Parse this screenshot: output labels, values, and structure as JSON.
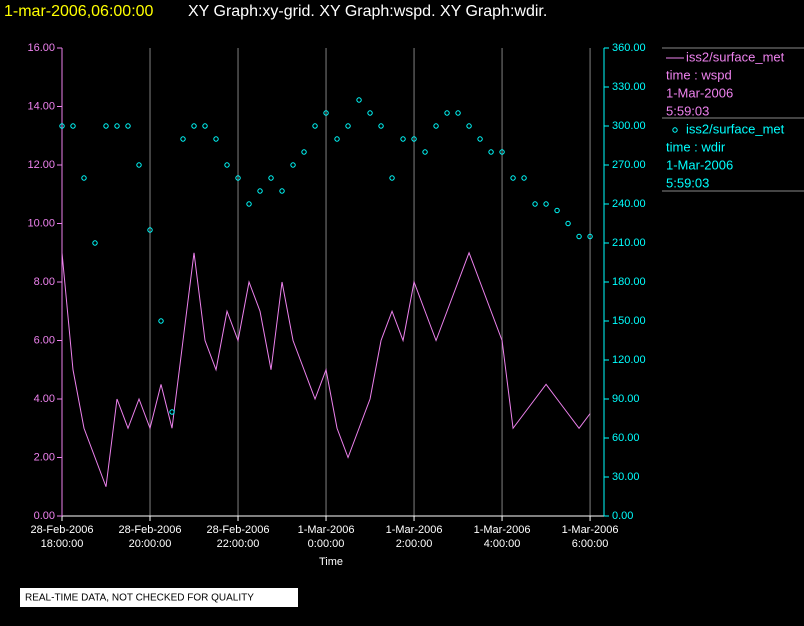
{
  "header": {
    "timestamp": "1-mar-2006,06:00:00",
    "graphs": "XY Graph:xy-grid.  XY Graph:wspd.  XY Graph:wdir."
  },
  "footer": "REAL-TIME DATA, NOT CHECKED FOR QUALITY",
  "chart_data": {
    "type": "line",
    "xlabel": "Time",
    "x": [
      "2006-02-28T18:00",
      "2006-02-28T18:15",
      "2006-02-28T18:30",
      "2006-02-28T18:45",
      "2006-02-28T19:00",
      "2006-02-28T19:15",
      "2006-02-28T19:30",
      "2006-02-28T19:45",
      "2006-02-28T20:00",
      "2006-02-28T20:15",
      "2006-02-28T20:30",
      "2006-02-28T20:45",
      "2006-02-28T21:00",
      "2006-02-28T21:15",
      "2006-02-28T21:30",
      "2006-02-28T21:45",
      "2006-02-28T22:00",
      "2006-02-28T22:15",
      "2006-02-28T22:30",
      "2006-02-28T22:45",
      "2006-02-28T23:00",
      "2006-02-28T23:15",
      "2006-02-28T23:30",
      "2006-02-28T23:45",
      "2006-03-01T00:00",
      "2006-03-01T00:15",
      "2006-03-01T00:30",
      "2006-03-01T00:45",
      "2006-03-01T01:00",
      "2006-03-01T01:15",
      "2006-03-01T01:30",
      "2006-03-01T01:45",
      "2006-03-01T02:00",
      "2006-03-01T02:15",
      "2006-03-01T02:30",
      "2006-03-01T02:45",
      "2006-03-01T03:00",
      "2006-03-01T03:15",
      "2006-03-01T03:30",
      "2006-03-01T03:45",
      "2006-03-01T04:00",
      "2006-03-01T04:15",
      "2006-03-01T04:30",
      "2006-03-01T04:45",
      "2006-03-01T05:00",
      "2006-03-01T05:15",
      "2006-03-01T05:30",
      "2006-03-01T05:45",
      "2006-03-01T06:00"
    ],
    "xlim": [
      "2006-02-28T18:00",
      "2006-03-01T06:19"
    ],
    "xticks": [
      {
        "value": "2006-02-28T18:00",
        "label": "28-Feb-2006\n18:00:00"
      },
      {
        "value": "2006-02-28T20:00",
        "label": "28-Feb-2006\n20:00:00"
      },
      {
        "value": "2006-02-28T22:00",
        "label": "28-Feb-2006\n22:00:00"
      },
      {
        "value": "2006-03-01T00:00",
        "label": "1-Mar-2006\n0:00:00"
      },
      {
        "value": "2006-03-01T02:00",
        "label": "1-Mar-2006\n2:00:00"
      },
      {
        "value": "2006-03-01T04:00",
        "label": "1-Mar-2006\n4:00:00"
      },
      {
        "value": "2006-03-01T06:00",
        "label": "1-Mar-2006\n6:00:00"
      }
    ],
    "ylim": [
      0,
      16
    ],
    "yticks": [
      {
        "value": 0,
        "label": "0.00"
      },
      {
        "value": 2,
        "label": "2.00"
      },
      {
        "value": 4,
        "label": "4.00"
      },
      {
        "value": 6,
        "label": "6.00"
      },
      {
        "value": 8,
        "label": "8.00"
      },
      {
        "value": 10,
        "label": "10.00"
      },
      {
        "value": 12,
        "label": "12.00"
      },
      {
        "value": 14,
        "label": "14.00"
      },
      {
        "value": 16,
        "label": "16.00"
      }
    ],
    "y2lim": [
      0,
      360
    ],
    "y2ticks": [
      {
        "value": 0,
        "label": "0.00"
      },
      {
        "value": 30,
        "label": "30.00"
      },
      {
        "value": 60,
        "label": "60.00"
      },
      {
        "value": 90,
        "label": "90.00"
      },
      {
        "value": 120,
        "label": "120.00"
      },
      {
        "value": 150,
        "label": "150.00"
      },
      {
        "value": 180,
        "label": "180.00"
      },
      {
        "value": 210,
        "label": "210.00"
      },
      {
        "value": 240,
        "label": "240.00"
      },
      {
        "value": 270,
        "label": "270.00"
      },
      {
        "value": 300,
        "label": "300.00"
      },
      {
        "value": 330,
        "label": "330.00"
      },
      {
        "value": 360,
        "label": "360.00"
      }
    ],
    "grid": true,
    "series": [
      {
        "name": "iss2/surface_met",
        "legend_lines": [
          "time : wspd",
          "1-Mar-2006",
          "5:59:03"
        ],
        "color": "#ee82ee",
        "mark": "line",
        "values": [
          9,
          5,
          3,
          2,
          1,
          4,
          3,
          4,
          3,
          4.5,
          3,
          6,
          9,
          6,
          5,
          7,
          6,
          8,
          7,
          5,
          8,
          6,
          5,
          4,
          5,
          3,
          2,
          3,
          4,
          6,
          7,
          6,
          8,
          7,
          6,
          7,
          8,
          9,
          8,
          7,
          6,
          3,
          3.5,
          4,
          4.5,
          4,
          3.5,
          3,
          3.5
        ]
      },
      {
        "name": "iss2/surface_met",
        "legend_lines": [
          "time : wdir",
          "1-Mar-2006",
          "5:59:03"
        ],
        "color": "#00ffff",
        "mark": "scatter",
        "axis": "y2",
        "values": [
          300,
          300,
          260,
          210,
          300,
          300,
          300,
          270,
          220,
          150,
          80,
          290,
          300,
          300,
          290,
          270,
          260,
          240,
          250,
          260,
          250,
          270,
          280,
          300,
          310,
          290,
          300,
          320,
          310,
          300,
          260,
          290,
          290,
          280,
          300,
          310,
          310,
          300,
          290,
          280,
          280,
          260,
          260,
          240,
          240,
          235,
          225,
          215,
          215
        ]
      }
    ]
  }
}
